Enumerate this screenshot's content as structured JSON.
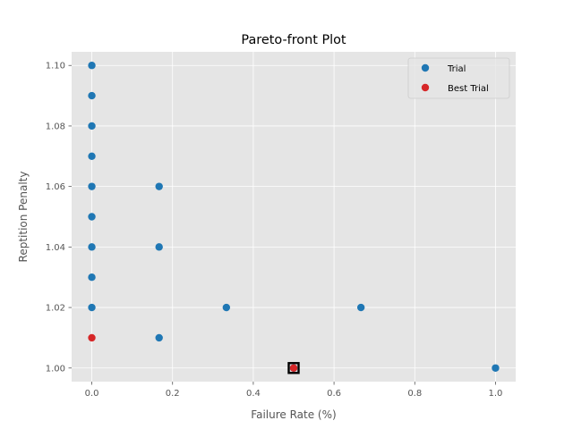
{
  "chart_data": {
    "type": "scatter",
    "title": "Pareto-front Plot",
    "xlabel": "Failure Rate (%)",
    "ylabel": "Reptition Penalty",
    "xlim": [
      -0.05,
      1.05
    ],
    "ylim": [
      0.9955,
      1.1045
    ],
    "xticks": [
      0.0,
      0.2,
      0.4,
      0.6,
      0.8,
      1.0
    ],
    "xtick_labels": [
      "0.0",
      "0.2",
      "0.4",
      "0.6",
      "0.8",
      "1.0"
    ],
    "yticks": [
      1.0,
      1.02,
      1.04,
      1.06,
      1.08,
      1.1
    ],
    "ytick_labels": [
      "1.00",
      "1.02",
      "1.04",
      "1.06",
      "1.08",
      "1.10"
    ],
    "grid": true,
    "legend_position": "top-right",
    "series": [
      {
        "name": "Trial",
        "color": "#1f77b4",
        "points": [
          {
            "x": 0.0,
            "y": 1.1
          },
          {
            "x": 0.0,
            "y": 1.09
          },
          {
            "x": 0.0,
            "y": 1.08
          },
          {
            "x": 0.0,
            "y": 1.07
          },
          {
            "x": 0.0,
            "y": 1.06
          },
          {
            "x": 0.0,
            "y": 1.05
          },
          {
            "x": 0.0,
            "y": 1.04
          },
          {
            "x": 0.0,
            "y": 1.03
          },
          {
            "x": 0.0,
            "y": 1.02
          },
          {
            "x": 0.1667,
            "y": 1.06
          },
          {
            "x": 0.1667,
            "y": 1.04
          },
          {
            "x": 0.1667,
            "y": 1.01
          },
          {
            "x": 0.3333,
            "y": 1.02
          },
          {
            "x": 0.6667,
            "y": 1.02
          },
          {
            "x": 1.0,
            "y": 1.0
          },
          {
            "x": 0.5,
            "y": 1.0
          }
        ]
      },
      {
        "name": "Best Trial",
        "color": "#d62728",
        "points": [
          {
            "x": 0.0,
            "y": 1.01
          },
          {
            "x": 0.5,
            "y": 1.0
          }
        ]
      }
    ],
    "highlight": {
      "x": 0.5,
      "y": 1.0,
      "marker": "square-outline",
      "color": "#000000"
    }
  }
}
